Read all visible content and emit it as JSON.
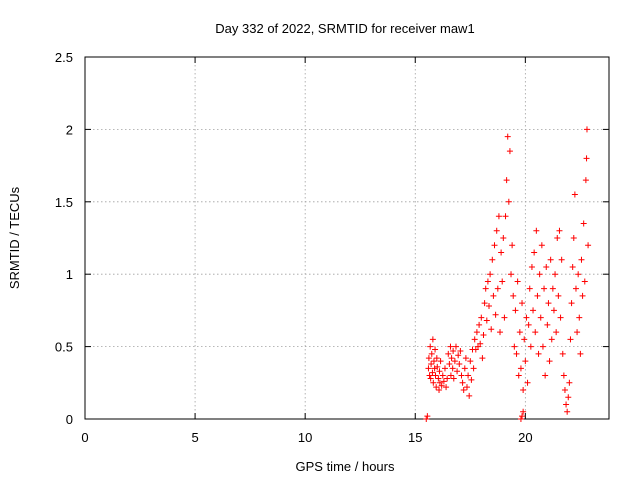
{
  "chart_data": {
    "type": "scatter",
    "title": "Day 332 of 2022, SRMTID for receiver maw1",
    "xlabel": "GPS time / hours",
    "ylabel": "SRMTID / TECUs",
    "xlim": [
      0,
      23.8
    ],
    "ylim": [
      0,
      2.5
    ],
    "xticks": [
      0,
      5,
      10,
      15,
      20
    ],
    "yticks": [
      0,
      0.5,
      1,
      1.5,
      2,
      2.5
    ],
    "xtick_labels": [
      "0",
      "5",
      "10",
      "15",
      "20"
    ],
    "ytick_labels": [
      "0",
      "0.5",
      "1",
      "1.5",
      "2",
      "2.5"
    ],
    "grid": true,
    "marker": "plus",
    "color": "#ff0000",
    "series": [
      {
        "name": "maw1",
        "points": [
          [
            15.5,
            0.0
          ],
          [
            15.55,
            0.02
          ],
          [
            19.8,
            0.0
          ],
          [
            19.85,
            0.02
          ],
          [
            19.9,
            0.05
          ],
          [
            15.6,
            0.35
          ],
          [
            15.62,
            0.42
          ],
          [
            15.65,
            0.3
          ],
          [
            15.68,
            0.5
          ],
          [
            15.7,
            0.28
          ],
          [
            15.72,
            0.38
          ],
          [
            15.75,
            0.45
          ],
          [
            15.78,
            0.32
          ],
          [
            15.8,
            0.55
          ],
          [
            15.82,
            0.25
          ],
          [
            15.85,
            0.4
          ],
          [
            15.88,
            0.35
          ],
          [
            15.9,
            0.48
          ],
          [
            15.92,
            0.3
          ],
          [
            15.95,
            0.22
          ],
          [
            15.98,
            0.42
          ],
          [
            16.0,
            0.36
          ],
          [
            16.05,
            0.28
          ],
          [
            16.08,
            0.2
          ],
          [
            16.1,
            0.33
          ],
          [
            16.12,
            0.25
          ],
          [
            16.15,
            0.4
          ],
          [
            16.2,
            0.23
          ],
          [
            16.25,
            0.3
          ],
          [
            16.3,
            0.26
          ],
          [
            16.35,
            0.35
          ],
          [
            16.4,
            0.22
          ],
          [
            16.45,
            0.28
          ],
          [
            16.5,
            0.45
          ],
          [
            16.55,
            0.38
          ],
          [
            16.6,
            0.5
          ],
          [
            16.62,
            0.3
          ],
          [
            16.65,
            0.42
          ],
          [
            16.7,
            0.35
          ],
          [
            16.72,
            0.47
          ],
          [
            16.75,
            0.28
          ],
          [
            16.8,
            0.4
          ],
          [
            16.85,
            0.5
          ],
          [
            16.9,
            0.33
          ],
          [
            16.95,
            0.44
          ],
          [
            17.0,
            0.38
          ],
          [
            17.05,
            0.47
          ],
          [
            17.1,
            0.3
          ],
          [
            17.15,
            0.25
          ],
          [
            17.2,
            0.2
          ],
          [
            17.25,
            0.35
          ],
          [
            17.3,
            0.42
          ],
          [
            17.35,
            0.22
          ],
          [
            17.4,
            0.3
          ],
          [
            17.45,
            0.16
          ],
          [
            17.5,
            0.4
          ],
          [
            17.55,
            0.27
          ],
          [
            17.6,
            0.48
          ],
          [
            17.65,
            0.35
          ],
          [
            17.7,
            0.55
          ],
          [
            17.75,
            0.48
          ],
          [
            17.8,
            0.6
          ],
          [
            17.85,
            0.5
          ],
          [
            17.9,
            0.65
          ],
          [
            17.95,
            0.52
          ],
          [
            18.0,
            0.7
          ],
          [
            18.05,
            0.42
          ],
          [
            18.1,
            0.58
          ],
          [
            18.15,
            0.8
          ],
          [
            18.2,
            0.9
          ],
          [
            18.25,
            0.68
          ],
          [
            18.3,
            0.95
          ],
          [
            18.35,
            0.78
          ],
          [
            18.4,
            1.0
          ],
          [
            18.45,
            0.62
          ],
          [
            18.5,
            1.1
          ],
          [
            18.55,
            0.85
          ],
          [
            18.6,
            1.2
          ],
          [
            18.65,
            0.72
          ],
          [
            18.7,
            1.3
          ],
          [
            18.75,
            0.9
          ],
          [
            18.8,
            1.4
          ],
          [
            18.85,
            0.6
          ],
          [
            18.9,
            1.15
          ],
          [
            18.95,
            0.95
          ],
          [
            19.0,
            1.25
          ],
          [
            19.05,
            0.7
          ],
          [
            19.1,
            1.4
          ],
          [
            19.15,
            1.65
          ],
          [
            19.2,
            1.95
          ],
          [
            19.25,
            1.5
          ],
          [
            19.3,
            1.85
          ],
          [
            19.35,
            1.0
          ],
          [
            19.4,
            1.2
          ],
          [
            19.45,
            0.85
          ],
          [
            19.5,
            0.5
          ],
          [
            19.55,
            0.75
          ],
          [
            19.6,
            0.45
          ],
          [
            19.65,
            0.95
          ],
          [
            19.7,
            0.3
          ],
          [
            19.75,
            0.6
          ],
          [
            19.8,
            0.35
          ],
          [
            19.85,
            0.8
          ],
          [
            19.9,
            0.2
          ],
          [
            19.95,
            0.55
          ],
          [
            20.0,
            0.4
          ],
          [
            20.05,
            0.7
          ],
          [
            20.1,
            0.25
          ],
          [
            20.15,
            0.65
          ],
          [
            20.2,
            0.9
          ],
          [
            20.25,
            0.5
          ],
          [
            20.3,
            1.05
          ],
          [
            20.35,
            0.75
          ],
          [
            20.4,
            1.15
          ],
          [
            20.45,
            0.6
          ],
          [
            20.5,
            1.3
          ],
          [
            20.55,
            0.85
          ],
          [
            20.6,
            0.45
          ],
          [
            20.65,
            1.0
          ],
          [
            20.7,
            0.7
          ],
          [
            20.75,
            1.2
          ],
          [
            20.8,
            0.5
          ],
          [
            20.85,
            0.9
          ],
          [
            20.9,
            0.3
          ],
          [
            20.95,
            1.05
          ],
          [
            21.0,
            0.65
          ],
          [
            21.05,
            0.8
          ],
          [
            21.1,
            0.4
          ],
          [
            21.15,
            1.1
          ],
          [
            21.2,
            0.55
          ],
          [
            21.25,
            0.9
          ],
          [
            21.3,
            0.75
          ],
          [
            21.35,
            1.0
          ],
          [
            21.4,
            0.6
          ],
          [
            21.45,
            1.25
          ],
          [
            21.5,
            0.85
          ],
          [
            21.55,
            1.3
          ],
          [
            21.6,
            0.7
          ],
          [
            21.65,
            1.1
          ],
          [
            21.7,
            0.45
          ],
          [
            21.75,
            0.3
          ],
          [
            21.8,
            0.2
          ],
          [
            21.85,
            0.1
          ],
          [
            21.9,
            0.05
          ],
          [
            21.95,
            0.15
          ],
          [
            22.0,
            0.25
          ],
          [
            22.05,
            0.55
          ],
          [
            22.1,
            0.8
          ],
          [
            22.15,
            1.05
          ],
          [
            22.2,
            1.25
          ],
          [
            22.25,
            1.55
          ],
          [
            22.3,
            0.9
          ],
          [
            22.35,
            0.6
          ],
          [
            22.4,
            1.0
          ],
          [
            22.45,
            0.7
          ],
          [
            22.5,
            0.45
          ],
          [
            22.55,
            1.1
          ],
          [
            22.6,
            0.85
          ],
          [
            22.65,
            1.35
          ],
          [
            22.7,
            0.95
          ],
          [
            22.75,
            1.65
          ],
          [
            22.78,
            1.8
          ],
          [
            22.8,
            2.0
          ],
          [
            22.85,
            1.2
          ]
        ]
      }
    ]
  }
}
